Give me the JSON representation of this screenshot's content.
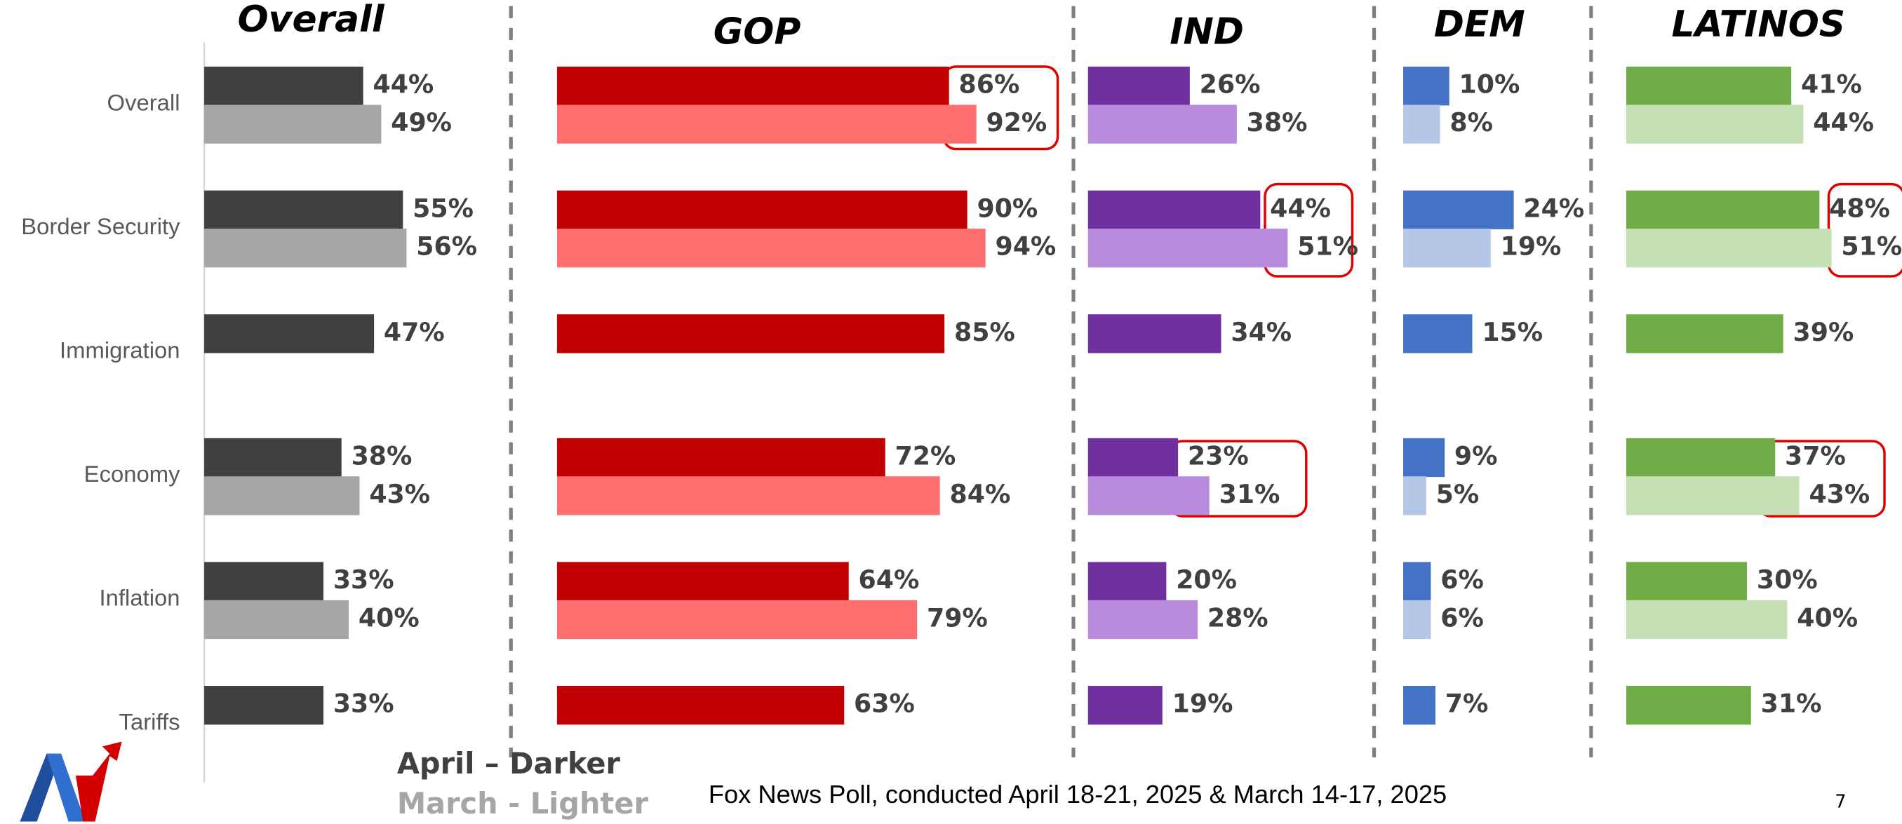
{
  "chart_data": {
    "type": "bar",
    "categories": [
      "Overall",
      "Border Security",
      "Immigration",
      "Economy",
      "Inflation",
      "Tariffs"
    ],
    "legend": [
      "April – Darker",
      "March - Lighter"
    ],
    "panels": [
      {
        "title": "Overall",
        "xlim": [
          0,
          100
        ],
        "series": [
          {
            "color": "#404040",
            "values": [
              44,
              55,
              47,
              38,
              33,
              33
            ],
            "value_labels": [
              "44%",
              "55%",
              "47%",
              "38%",
              "33%",
              "33%"
            ]
          },
          {
            "color": "#a6a6a6",
            "values": [
              49,
              56,
              null,
              43,
              40,
              null
            ],
            "value_labels": [
              "49%",
              "56%",
              null,
              "43%",
              "40%",
              null
            ]
          }
        ]
      },
      {
        "title": "GOP",
        "xlim": [
          0,
          100
        ],
        "series": [
          {
            "color": "#c00000",
            "values": [
              86,
              90,
              85,
              72,
              64,
              63
            ],
            "value_labels": [
              "86%",
              "90%",
              "85%",
              "72%",
              "64%",
              "63%"
            ]
          },
          {
            "color": "#ff6f6f",
            "values": [
              92,
              94,
              null,
              84,
              79,
              null
            ],
            "value_labels": [
              "92%",
              "94%",
              null,
              "84%",
              "79%",
              null
            ]
          }
        ]
      },
      {
        "title": "IND",
        "xlim": [
          0,
          100
        ],
        "series": [
          {
            "color": "#7030a0",
            "values": [
              26,
              44,
              34,
              23,
              20,
              19
            ],
            "value_labels": [
              "26%",
              "44%",
              "34%",
              "23%",
              "20%",
              "19%"
            ]
          },
          {
            "color": "#b98bdc",
            "values": [
              38,
              51,
              null,
              31,
              28,
              null
            ],
            "value_labels": [
              "38%",
              "51%",
              null,
              "31%",
              "28%",
              null
            ]
          }
        ]
      },
      {
        "title": "DEM",
        "xlim": [
          0,
          100
        ],
        "series": [
          {
            "color": "#4472c4",
            "values": [
              10,
              24,
              15,
              9,
              6,
              7
            ],
            "value_labels": [
              "10%",
              "24%",
              "15%",
              "9%",
              "6%",
              "7%"
            ]
          },
          {
            "color": "#b4c7e7",
            "values": [
              8,
              19,
              null,
              5,
              6,
              null
            ],
            "value_labels": [
              "8%",
              "19%",
              null,
              "5%",
              "6%",
              null
            ]
          }
        ]
      },
      {
        "title": "LATINOS",
        "xlim": [
          0,
          100
        ],
        "series": [
          {
            "color": "#70ad47",
            "values": [
              41,
              48,
              39,
              37,
              30,
              31
            ],
            "value_labels": [
              "41%",
              "48%",
              "39%",
              "37%",
              "30%",
              "31%"
            ]
          },
          {
            "color": "#c5e0b4",
            "values": [
              44,
              51,
              null,
              43,
              40,
              null
            ],
            "value_labels": [
              "44%",
              "51%",
              null,
              "43%",
              "40%",
              null
            ]
          }
        ]
      }
    ],
    "footnote": "Fox News Poll, conducted April 18-21, 2025 & March 14-17, 2025",
    "page_number": "7"
  }
}
